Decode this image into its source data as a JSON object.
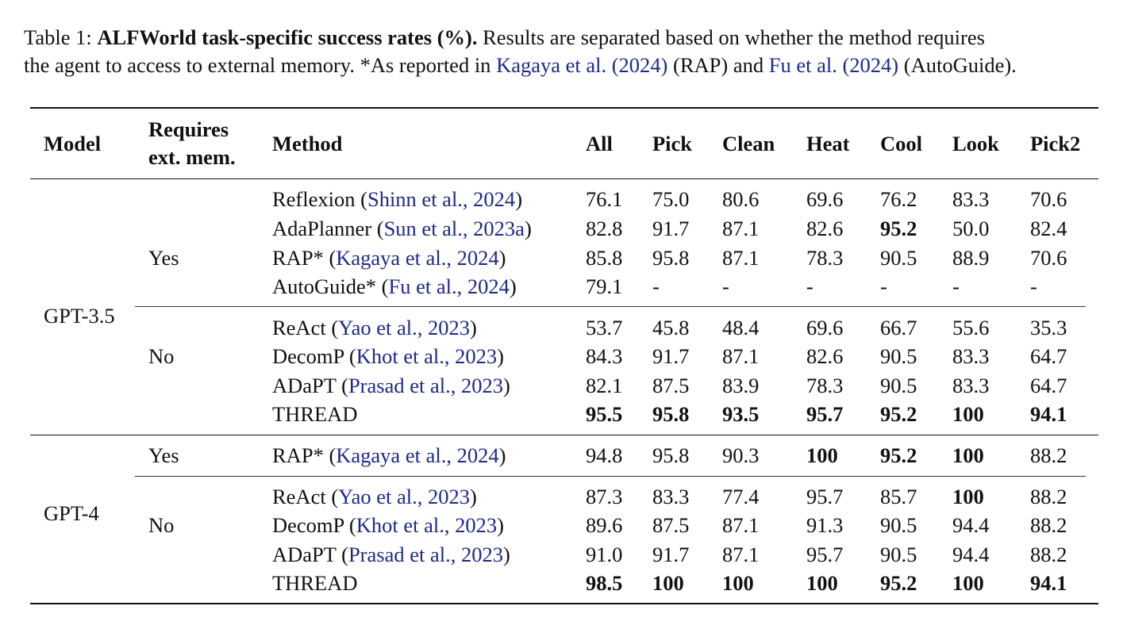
{
  "caption": {
    "label": "Table 1:",
    "title": "ALFWorld task-specific success rates (%).",
    "line1_rest": "Results are separated based on whether the method requires",
    "line2_a": "the agent to access to external memory. *As reported in",
    "cite_rap": "Kagaya et al. (2024)",
    "line2_b": "(RAP) and",
    "cite_autoguide": "Fu et al. (2024)",
    "line2_c": "(AutoGuide)."
  },
  "header": {
    "model": "Model",
    "requires_line1": "Requires",
    "requires_line2": "ext. mem.",
    "method": "Method",
    "columns": [
      "All",
      "Pick",
      "Clean",
      "Heat",
      "Cool",
      "Look",
      "Pick2"
    ]
  },
  "groups": {
    "gpt35": "GPT-3.5",
    "gpt4": "GPT-4",
    "yes": "Yes",
    "no": "No"
  },
  "rows": [
    {
      "method": "Reflexion",
      "cite": "Shinn et al., 2024",
      "values": [
        "76.1",
        "75.0",
        "80.6",
        "69.6",
        "76.2",
        "83.3",
        "70.6"
      ],
      "bold": []
    },
    {
      "method": "AdaPlanner",
      "cite": "Sun et al., 2023a",
      "values": [
        "82.8",
        "91.7",
        "87.1",
        "82.6",
        "95.2",
        "50.0",
        "82.4"
      ],
      "bold": [
        4
      ]
    },
    {
      "method": "RAP*",
      "cite": "Kagaya et al., 2024",
      "values": [
        "85.8",
        "95.8",
        "87.1",
        "78.3",
        "90.5",
        "88.9",
        "70.6"
      ],
      "bold": []
    },
    {
      "method": "AutoGuide*",
      "cite": "Fu et al., 2024",
      "values": [
        "79.1",
        "-",
        "-",
        "-",
        "-",
        "-",
        "-"
      ],
      "bold": []
    },
    {
      "method": "ReAct",
      "cite": "Yao et al., 2023",
      "values": [
        "53.7",
        "45.8",
        "48.4",
        "69.6",
        "66.7",
        "55.6",
        "35.3"
      ],
      "bold": []
    },
    {
      "method": "DecomP",
      "cite": "Khot et al., 2023",
      "values": [
        "84.3",
        "91.7",
        "87.1",
        "82.6",
        "90.5",
        "83.3",
        "64.7"
      ],
      "bold": []
    },
    {
      "method": "ADaPT",
      "cite": "Prasad et al., 2023",
      "values": [
        "82.1",
        "87.5",
        "83.9",
        "78.3",
        "90.5",
        "83.3",
        "64.7"
      ],
      "bold": []
    },
    {
      "method": "THREAD",
      "cite": "",
      "values": [
        "95.5",
        "95.8",
        "93.5",
        "95.7",
        "95.2",
        "100",
        "94.1"
      ],
      "bold": [
        0,
        1,
        2,
        3,
        4,
        5,
        6
      ]
    },
    {
      "method": "RAP*",
      "cite": "Kagaya et al., 2024",
      "values": [
        "94.8",
        "95.8",
        "90.3",
        "100",
        "95.2",
        "100",
        "88.2"
      ],
      "bold": [
        3,
        4,
        5
      ]
    },
    {
      "method": "ReAct",
      "cite": "Yao et al., 2023",
      "values": [
        "87.3",
        "83.3",
        "77.4",
        "95.7",
        "85.7",
        "100",
        "88.2"
      ],
      "bold": [
        5
      ]
    },
    {
      "method": "DecomP",
      "cite": "Khot et al., 2023",
      "values": [
        "89.6",
        "87.5",
        "87.1",
        "91.3",
        "90.5",
        "94.4",
        "88.2"
      ],
      "bold": []
    },
    {
      "method": "ADaPT",
      "cite": "Prasad et al., 2023",
      "values": [
        "91.0",
        "91.7",
        "87.1",
        "95.7",
        "90.5",
        "94.4",
        "88.2"
      ],
      "bold": []
    },
    {
      "method": "THREAD",
      "cite": "",
      "values": [
        "98.5",
        "100",
        "100",
        "100",
        "95.2",
        "100",
        "94.1"
      ],
      "bold": [
        0,
        1,
        2,
        3,
        4,
        5,
        6
      ]
    }
  ]
}
